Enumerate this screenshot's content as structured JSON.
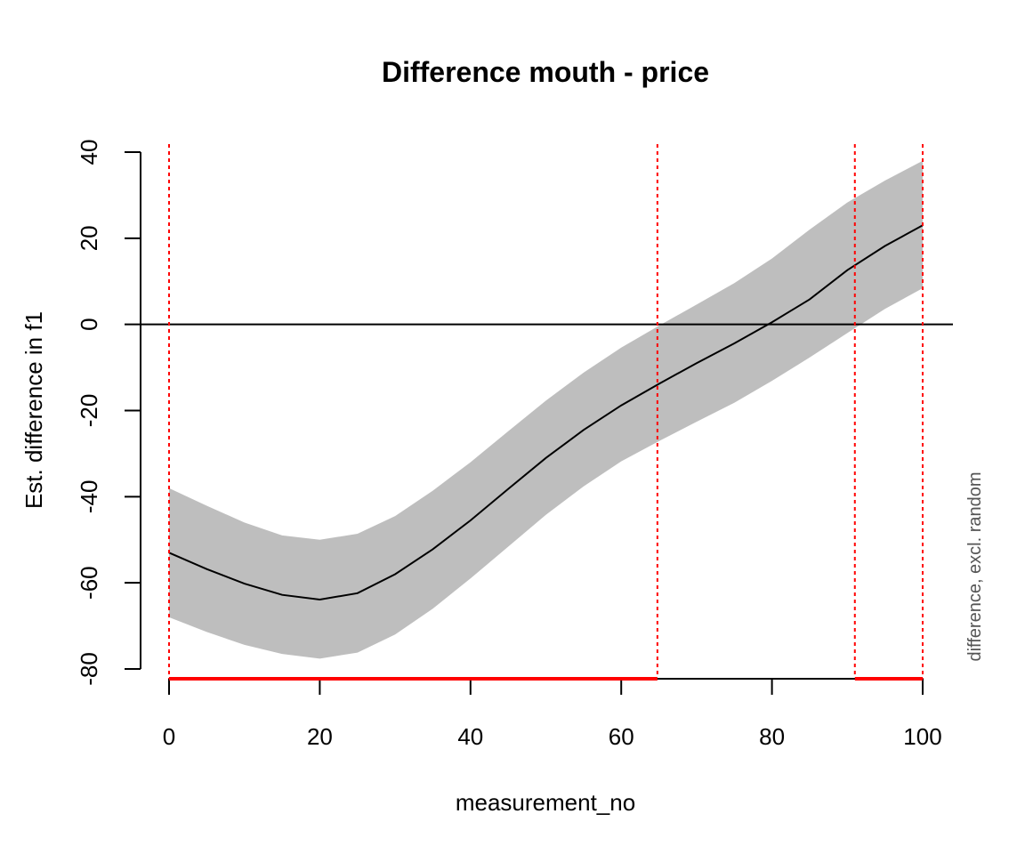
{
  "chart_data": {
    "type": "line",
    "title": "Difference mouth - price",
    "xlabel": "measurement_no",
    "ylabel": "Est. difference in f1",
    "side_label": "difference, excl. random",
    "xlim": [
      0,
      100
    ],
    "ylim": [
      -80,
      40
    ],
    "x_ticks": [
      0,
      20,
      40,
      60,
      80,
      100
    ],
    "y_ticks": [
      -80,
      -60,
      -40,
      -20,
      0,
      20,
      40
    ],
    "grid": false,
    "reference_line_y": 0,
    "series": [
      {
        "x": [
          0,
          5,
          10,
          15,
          20,
          25,
          30,
          35,
          40,
          45,
          50,
          55,
          60,
          65,
          70,
          75,
          80,
          85,
          90,
          95,
          100
        ],
        "estimate": [
          -53,
          -56.8,
          -60.2,
          -62.8,
          -63.9,
          -62.4,
          -58,
          -52.2,
          -45.5,
          -38.2,
          -31,
          -24.5,
          -18.8,
          -13.8,
          -9,
          -4.4,
          0.5,
          5.8,
          12.6,
          18.2,
          23
        ],
        "ci_upper": [
          -38,
          -42.1,
          -46,
          -49,
          -50,
          -48.6,
          -44.5,
          -38.6,
          -32,
          -24.8,
          -17.7,
          -11.2,
          -5.4,
          -0.3,
          4.6,
          9.6,
          15.3,
          22,
          28.3,
          33.4,
          38
        ],
        "ci_lower": [
          -68,
          -71.4,
          -74.4,
          -76.5,
          -77.6,
          -76.2,
          -72,
          -66,
          -59,
          -51.6,
          -44.2,
          -37.6,
          -31.8,
          -27.1,
          -22.6,
          -18.2,
          -13.1,
          -7.7,
          -2,
          3.6,
          8.4
        ]
      }
    ],
    "significance": {
      "vlines_x": [
        0,
        64.8,
        91,
        100
      ],
      "intervals": [
        [
          0,
          64.8
        ],
        [
          91,
          100
        ]
      ]
    },
    "colors": {
      "ci_band": "#bebebe",
      "estimate_line": "#000000",
      "significance": "#ff0000",
      "zero_line": "#000000",
      "side_label": "#555555"
    }
  }
}
